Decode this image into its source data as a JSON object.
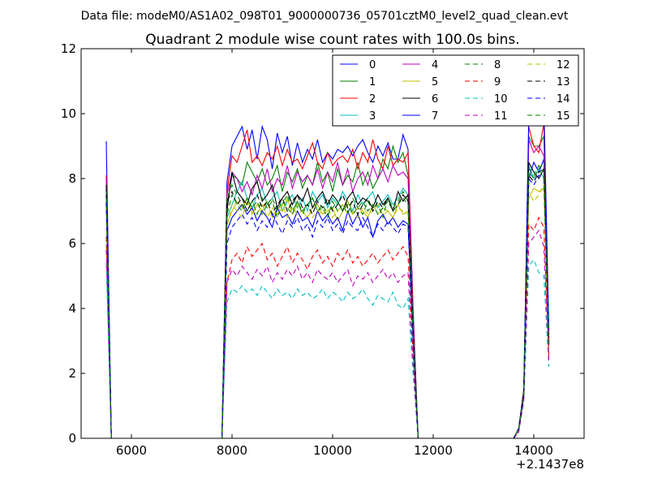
{
  "header": {
    "data_file": "Data file: modeM0/AS1A02_098T01_9000000736_05701cztM0_level2_quad_clean.evt"
  },
  "chart_data": {
    "type": "line",
    "title": "Quadrant 2 module wise count rates with 100.0s bins.",
    "xlabel": "",
    "ylabel": "",
    "x_offset_label": "+2.1437e8",
    "xlim": [
      5000,
      15000
    ],
    "ylim": [
      0,
      12
    ],
    "xticks": [
      6000,
      8000,
      10000,
      12000,
      14000
    ],
    "yticks": [
      0,
      2,
      4,
      6,
      8,
      10,
      12
    ],
    "grid": false,
    "legend": {
      "placement": "top-right",
      "columns": 4
    },
    "x": [
      5500,
      5600,
      7800,
      7900,
      8000,
      8100,
      8200,
      8300,
      8400,
      8500,
      8600,
      8700,
      8800,
      8900,
      9000,
      9100,
      9200,
      9300,
      9400,
      9500,
      9600,
      9700,
      9800,
      9900,
      10000,
      10100,
      10200,
      10300,
      10400,
      10500,
      10600,
      10700,
      10800,
      10900,
      11000,
      11100,
      11200,
      11300,
      11400,
      11500,
      11600,
      11700,
      13600,
      13700,
      13800,
      13900,
      14000,
      14100,
      14200,
      14300
    ],
    "series": [
      {
        "name": "0",
        "color": "#0000ff",
        "dash": false,
        "values": [
          9.15,
          0,
          0,
          7.9,
          9.0,
          9.3,
          9.6,
          8.9,
          9.5,
          8.6,
          9.6,
          9.2,
          8.3,
          9.4,
          8.8,
          9.3,
          8.4,
          9.1,
          8.5,
          8.9,
          8.6,
          9.2,
          8.5,
          8.8,
          8.6,
          8.9,
          8.8,
          9.0,
          8.7,
          9.0,
          9.2,
          8.8,
          8.5,
          9.0,
          8.7,
          9.1,
          8.6,
          8.6,
          9.35,
          8.9,
          4.0,
          0,
          0,
          0.3,
          1.5,
          8.0,
          8.5,
          8.2,
          8.6,
          3.2
        ]
      },
      {
        "name": "1",
        "color": "#008000",
        "dash": false,
        "values": [
          8.0,
          0,
          0,
          7.2,
          8.1,
          8.0,
          7.8,
          8.5,
          8.2,
          7.9,
          8.3,
          7.8,
          8.0,
          8.4,
          7.6,
          8.2,
          7.9,
          8.3,
          7.7,
          8.1,
          7.8,
          8.5,
          7.9,
          8.2,
          7.6,
          8.3,
          7.8,
          8.1,
          7.9,
          8.5,
          7.8,
          8.2,
          7.7,
          8.0,
          8.6,
          8.3,
          9.0,
          8.5,
          8.8,
          8.1,
          3.6,
          0,
          0,
          0.3,
          1.4,
          9.3,
          9.0,
          9.0,
          9.3,
          3.0
        ]
      },
      {
        "name": "2",
        "color": "#ff0000",
        "dash": false,
        "values": [
          8.1,
          0,
          0,
          7.6,
          8.7,
          8.5,
          9.0,
          9.5,
          8.5,
          8.7,
          8.4,
          8.8,
          8.6,
          9.0,
          8.4,
          8.9,
          8.5,
          8.6,
          8.3,
          8.7,
          9.1,
          8.5,
          8.3,
          8.8,
          8.4,
          8.6,
          8.7,
          8.5,
          8.9,
          8.3,
          8.8,
          8.5,
          9.2,
          8.6,
          8.3,
          9.0,
          8.4,
          8.6,
          8.5,
          8.8,
          3.8,
          0,
          0,
          0.3,
          1.5,
          9.6,
          9.0,
          8.8,
          9.7,
          3.0
        ]
      },
      {
        "name": "3",
        "color": "#00bfbf",
        "dash": false,
        "values": [
          7.5,
          0,
          0,
          6.8,
          7.2,
          7.6,
          7.9,
          7.4,
          7.1,
          7.5,
          7.7,
          7.2,
          7.4,
          7.6,
          7.0,
          7.3,
          7.5,
          7.1,
          7.4,
          7.0,
          7.6,
          7.3,
          7.5,
          7.1,
          7.4,
          7.2,
          7.6,
          7.3,
          7.0,
          7.5,
          7.2,
          7.4,
          7.6,
          7.1,
          7.3,
          7.5,
          7.2,
          7.4,
          7.7,
          7.5,
          3.4,
          0,
          0,
          0.3,
          1.3,
          8.4,
          8.0,
          8.3,
          8.0,
          2.8
        ]
      },
      {
        "name": "4",
        "color": "#bf00bf",
        "dash": false,
        "values": [
          8.0,
          0,
          0,
          7.5,
          8.2,
          8.0,
          7.6,
          7.9,
          7.5,
          8.1,
          7.7,
          8.3,
          7.6,
          8.0,
          7.8,
          8.4,
          7.7,
          8.2,
          7.9,
          8.1,
          7.8,
          8.3,
          7.7,
          8.2,
          7.9,
          8.5,
          7.8,
          8.3,
          7.6,
          8.0,
          8.2,
          7.8,
          8.4,
          8.0,
          8.3,
          7.9,
          8.4,
          8.1,
          8.2,
          8.0,
          3.7,
          0,
          0,
          0.3,
          1.4,
          9.2,
          8.8,
          9.0,
          8.7,
          3.1
        ]
      },
      {
        "name": "5",
        "color": "#bfbf00",
        "dash": false,
        "values": [
          7.2,
          0,
          0,
          6.6,
          7.0,
          7.3,
          7.1,
          7.4,
          6.9,
          7.2,
          7.0,
          7.3,
          6.8,
          7.1,
          7.0,
          7.4,
          6.9,
          7.2,
          7.0,
          6.8,
          7.1,
          7.2,
          6.9,
          7.0,
          7.1,
          6.7,
          7.0,
          7.3,
          6.9,
          7.1,
          7.0,
          6.8,
          7.2,
          6.9,
          7.1,
          7.0,
          6.8,
          7.2,
          6.9,
          7.0,
          3.2,
          0,
          0,
          0.3,
          1.3,
          7.4,
          7.7,
          7.6,
          7.7,
          2.7
        ]
      },
      {
        "name": "6",
        "color": "#000000",
        "dash": false,
        "values": [
          7.8,
          0,
          0,
          7.0,
          8.2,
          7.6,
          7.4,
          7.2,
          7.7,
          7.9,
          7.3,
          7.5,
          7.8,
          7.1,
          7.4,
          7.6,
          7.2,
          7.5,
          7.3,
          7.7,
          7.1,
          7.4,
          7.6,
          7.2,
          7.5,
          7.3,
          7.0,
          7.4,
          7.6,
          7.2,
          7.4,
          7.3,
          7.1,
          7.5,
          7.2,
          7.4,
          7.0,
          7.6,
          7.3,
          7.5,
          3.4,
          0,
          0,
          0.3,
          1.4,
          8.5,
          8.2,
          8.0,
          8.3,
          2.9
        ]
      },
      {
        "name": "7",
        "color": "#0000ff",
        "dash": false,
        "values": [
          7.6,
          0,
          0,
          6.4,
          6.8,
          7.0,
          7.2,
          6.9,
          7.1,
          6.7,
          7.0,
          6.8,
          6.5,
          7.1,
          6.8,
          6.9,
          6.6,
          7.0,
          6.7,
          6.8,
          6.5,
          7.0,
          6.7,
          6.9,
          6.6,
          6.8,
          6.4,
          7.0,
          6.6,
          6.9,
          6.5,
          6.8,
          6.2,
          6.7,
          6.9,
          6.6,
          6.8,
          6.5,
          6.7,
          6.6,
          3.0,
          0,
          0,
          0.3,
          1.4,
          9.9,
          9.9,
          10.5,
          10.3,
          3.3
        ]
      },
      {
        "name": "8",
        "color": "#008000",
        "dash": true,
        "values": [
          7.6,
          0,
          0,
          7.4,
          7.8,
          7.5,
          7.2,
          7.0,
          7.3,
          6.9,
          7.4,
          7.1,
          7.3,
          6.8,
          7.2,
          7.5,
          7.0,
          7.3,
          6.9,
          7.2,
          7.4,
          7.0,
          7.1,
          6.8,
          7.3,
          7.0,
          7.2,
          6.9,
          7.4,
          7.1,
          6.9,
          7.3,
          7.0,
          7.2,
          6.8,
          7.4,
          7.1,
          7.3,
          7.6,
          7.3,
          3.3,
          0,
          0,
          0.3,
          1.4,
          8.2,
          8.0,
          8.3,
          8.5,
          3.0
        ]
      },
      {
        "name": "9",
        "color": "#ff0000",
        "dash": true,
        "values": [
          6.2,
          0,
          0,
          4.8,
          5.5,
          5.7,
          5.4,
          5.9,
          5.6,
          5.8,
          6.0,
          5.5,
          5.7,
          5.3,
          5.6,
          5.9,
          5.4,
          5.7,
          5.5,
          5.2,
          5.6,
          5.8,
          5.4,
          5.6,
          5.3,
          5.7,
          5.5,
          5.8,
          5.4,
          5.6,
          5.3,
          5.5,
          5.7,
          5.4,
          5.6,
          5.8,
          5.5,
          5.7,
          5.9,
          5.6,
          2.6,
          0,
          0,
          0.2,
          1.2,
          6.6,
          6.4,
          6.8,
          6.5,
          2.5
        ]
      },
      {
        "name": "10",
        "color": "#00bfbf",
        "dash": true,
        "values": [
          5.4,
          0,
          0,
          4.2,
          4.6,
          4.5,
          4.7,
          4.5,
          4.6,
          4.4,
          4.7,
          4.5,
          4.3,
          4.6,
          4.4,
          4.5,
          4.3,
          4.6,
          4.4,
          4.5,
          4.3,
          4.4,
          4.6,
          4.3,
          4.5,
          4.4,
          4.2,
          4.5,
          4.3,
          4.4,
          4.6,
          4.3,
          4.1,
          4.4,
          4.3,
          4.2,
          4.5,
          4.1,
          4.0,
          4.3,
          2.0,
          0,
          0,
          0.2,
          1.1,
          5.3,
          5.5,
          5.1,
          5.0,
          2.2
        ]
      },
      {
        "name": "11",
        "color": "#bf00bf",
        "dash": true,
        "values": [
          5.8,
          0,
          0,
          4.8,
          5.2,
          5.0,
          5.3,
          5.1,
          4.9,
          5.2,
          5.0,
          5.3,
          4.8,
          5.1,
          4.9,
          5.2,
          5.0,
          5.3,
          4.9,
          5.1,
          4.8,
          5.2,
          5.0,
          4.9,
          5.1,
          4.8,
          5.0,
          5.2,
          4.7,
          5.0,
          4.9,
          5.1,
          4.8,
          5.0,
          5.2,
          4.9,
          5.1,
          4.8,
          5.0,
          5.1,
          2.3,
          0,
          0,
          0.2,
          1.2,
          6.0,
          6.2,
          6.4,
          5.9,
          2.4
        ]
      },
      {
        "name": "12",
        "color": "#bfbf00",
        "dash": true,
        "values": [
          7.0,
          0,
          0,
          6.5,
          7.2,
          7.0,
          6.8,
          7.3,
          7.0,
          6.9,
          7.2,
          6.8,
          7.1,
          6.9,
          7.2,
          6.8,
          7.1,
          6.9,
          7.0,
          7.2,
          6.8,
          7.0,
          6.9,
          7.1,
          6.8,
          7.0,
          7.2,
          6.9,
          7.0,
          6.8,
          7.1,
          6.9,
          7.0,
          7.2,
          6.9,
          7.0,
          6.8,
          7.1,
          7.0,
          6.9,
          3.1,
          0,
          0,
          0.3,
          1.3,
          7.6,
          7.3,
          7.5,
          7.8,
          2.8
        ]
      },
      {
        "name": "13",
        "color": "#000000",
        "dash": true,
        "values": [
          7.5,
          0,
          0,
          7.3,
          7.6,
          7.2,
          7.4,
          7.0,
          7.3,
          7.5,
          7.1,
          7.3,
          6.9,
          7.2,
          7.4,
          7.0,
          7.3,
          7.5,
          7.1,
          7.2,
          6.9,
          7.3,
          7.1,
          7.4,
          7.0,
          7.2,
          7.5,
          7.1,
          7.3,
          6.9,
          7.2,
          7.4,
          7.0,
          7.3,
          7.1,
          7.4,
          7.0,
          7.2,
          7.5,
          7.3,
          3.3,
          0,
          0,
          0.3,
          1.4,
          8.1,
          7.9,
          8.2,
          8.3,
          2.9
        ]
      },
      {
        "name": "14",
        "color": "#0000ff",
        "dash": true,
        "values": [
          7.3,
          0,
          0,
          6.0,
          6.5,
          6.7,
          6.9,
          6.6,
          6.8,
          6.4,
          6.7,
          6.5,
          6.9,
          6.6,
          6.3,
          6.7,
          6.5,
          6.8,
          6.4,
          6.6,
          6.2,
          6.7,
          6.5,
          6.8,
          6.4,
          6.6,
          6.3,
          6.7,
          6.5,
          6.4,
          6.8,
          6.5,
          6.2,
          6.6,
          6.4,
          6.7,
          6.5,
          6.3,
          6.6,
          6.5,
          3.0,
          0,
          0,
          0.3,
          1.3,
          8.0,
          7.8,
          8.1,
          8.0,
          2.8
        ]
      },
      {
        "name": "15",
        "color": "#008000",
        "dash": true,
        "values": [
          7.4,
          0,
          0,
          6.9,
          7.5,
          7.2,
          7.0,
          7.4,
          7.1,
          7.3,
          6.9,
          7.2,
          7.4,
          7.0,
          7.3,
          7.1,
          6.9,
          7.3,
          7.0,
          7.2,
          7.4,
          7.0,
          7.2,
          6.9,
          7.1,
          7.3,
          7.0,
          7.2,
          6.9,
          7.1,
          7.3,
          7.0,
          7.2,
          6.9,
          7.1,
          7.3,
          7.0,
          7.2,
          7.4,
          7.2,
          3.3,
          0,
          0,
          0.3,
          1.4,
          8.3,
          8.1,
          8.4,
          8.2,
          2.9
        ]
      }
    ]
  }
}
